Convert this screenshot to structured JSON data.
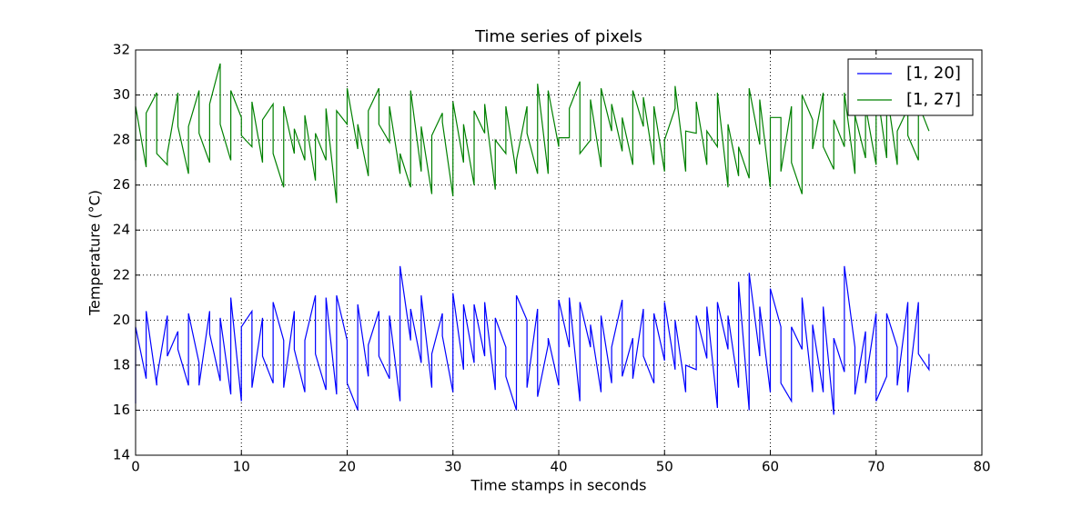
{
  "chart_data": {
    "type": "line",
    "title": "Time series of pixels",
    "x_label": "Time stamps in seconds",
    "y_label": "Temperature (°C)",
    "x": [
      0,
      0,
      1,
      1,
      2,
      2,
      3,
      3,
      4,
      4,
      5,
      5,
      6,
      6,
      7,
      7,
      8,
      8,
      9,
      9,
      10,
      10,
      11,
      11,
      12,
      12,
      13,
      13,
      14,
      14,
      15,
      15,
      16,
      16,
      17,
      17,
      18,
      18,
      19,
      19,
      20,
      20,
      21,
      21,
      22,
      22,
      23,
      23,
      24,
      24,
      25,
      25,
      26,
      26,
      27,
      27,
      28,
      28,
      29,
      29,
      30,
      30,
      31,
      31,
      32,
      32,
      33,
      33,
      34,
      34,
      35,
      35,
      36,
      36,
      37,
      37,
      38,
      38,
      39,
      39,
      40,
      40,
      41,
      41,
      42,
      42,
      43,
      43,
      44,
      44,
      45,
      45,
      46,
      46,
      47,
      47,
      48,
      48,
      49,
      49,
      50,
      50,
      51,
      51,
      52,
      52,
      53,
      53,
      54,
      54,
      55,
      55,
      56,
      56,
      57,
      57,
      58,
      58,
      59,
      59,
      60,
      60,
      61,
      61,
      62,
      62,
      63,
      63,
      64,
      64,
      65,
      65,
      66,
      66,
      67,
      67,
      68,
      68,
      69,
      69,
      70,
      70,
      71,
      71,
      72,
      72,
      73,
      73,
      74,
      74,
      75,
      75
    ],
    "series": [
      {
        "name": "[1, 20]",
        "color": "#0000ff",
        "values": [
          16.3,
          19.7,
          17.4,
          20.4,
          17.1,
          17.4,
          20.2,
          18.4,
          19.5,
          18.7,
          17.1,
          20.3,
          18.1,
          17.1,
          20.4,
          19.4,
          17.3,
          20.1,
          16.7,
          21.0,
          16.4,
          19.7,
          20.4,
          17.0,
          20.1,
          18.4,
          17.2,
          20.8,
          19.1,
          17.0,
          20.4,
          18.7,
          16.8,
          19.1,
          21.1,
          18.5,
          16.9,
          21.0,
          16.7,
          21.1,
          19.1,
          17.2,
          16.0,
          20.7,
          17.5,
          18.9,
          20.4,
          18.4,
          17.4,
          20.2,
          16.4,
          22.4,
          19.1,
          20.5,
          18.1,
          21.1,
          17.0,
          18.5,
          20.3,
          19.3,
          16.8,
          21.2,
          17.8,
          20.7,
          18.1,
          20.7,
          18.4,
          20.8,
          16.9,
          20.1,
          18.8,
          17.5,
          16.0,
          21.1,
          20.0,
          17.0,
          20.5,
          16.6,
          18.9,
          19.2,
          17.1,
          20.9,
          18.8,
          21.0,
          16.4,
          20.8,
          18.8,
          19.8,
          16.8,
          20.2,
          17.2,
          18.8,
          20.9,
          17.5,
          19.2,
          17.4,
          20.5,
          18.4,
          17.2,
          20.3,
          18.2,
          20.8,
          17.8,
          20.0,
          16.8,
          18.0,
          17.8,
          20.2,
          18.3,
          20.6,
          16.1,
          20.8,
          18.7,
          20.2,
          17.0,
          21.7,
          16.0,
          22.1,
          18.4,
          20.6,
          16.8,
          21.4,
          19.7,
          17.2,
          16.4,
          19.7,
          18.7,
          21.0,
          16.8,
          19.8,
          16.8,
          20.6,
          15.8,
          19.2,
          17.7,
          22.4,
          18.8,
          16.7,
          19.5,
          17.2,
          20.3,
          16.4,
          17.5,
          20.3,
          18.8,
          17.1,
          20.8,
          16.8,
          20.8,
          18.5,
          17.8,
          18.5
        ]
      },
      {
        "name": "[1, 27]",
        "color": "#008000",
        "values": [
          27.1,
          29.5,
          26.8,
          29.2,
          30.1,
          27.4,
          26.9,
          27.4,
          30.1,
          28.6,
          26.5,
          28.6,
          30.2,
          28.3,
          27.0,
          29.6,
          31.4,
          28.7,
          27.1,
          30.2,
          29.0,
          28.2,
          27.7,
          29.7,
          27.0,
          28.9,
          29.6,
          27.4,
          25.9,
          29.5,
          27.4,
          28.5,
          27.1,
          29.1,
          26.2,
          28.3,
          27.1,
          29.4,
          25.2,
          29.3,
          28.7,
          30.3,
          27.6,
          28.7,
          26.4,
          29.3,
          30.3,
          28.7,
          27.9,
          29.5,
          26.5,
          27.4,
          25.9,
          30.2,
          26.6,
          28.6,
          25.6,
          28.2,
          29.2,
          28.8,
          25.5,
          29.7,
          27.0,
          28.7,
          26.0,
          29.3,
          28.3,
          29.6,
          25.8,
          28.0,
          27.4,
          29.5,
          26.5,
          27.1,
          29.5,
          28.3,
          26.5,
          30.5,
          26.5,
          30.2,
          27.7,
          28.1,
          28.1,
          29.4,
          30.6,
          27.4,
          28.0,
          29.8,
          26.8,
          30.3,
          28.4,
          29.6,
          27.5,
          29.0,
          26.9,
          30.2,
          28.6,
          29.9,
          26.9,
          29.5,
          26.6,
          28.0,
          29.4,
          30.4,
          26.6,
          28.4,
          28.3,
          29.7,
          26.9,
          28.4,
          27.7,
          30.1,
          25.9,
          28.7,
          26.4,
          27.7,
          26.3,
          30.3,
          27.8,
          29.8,
          25.9,
          29.0,
          29.0,
          26.6,
          29.5,
          27.0,
          25.6,
          30.0,
          28.9,
          27.6,
          30.1,
          27.7,
          26.7,
          28.9,
          27.7,
          30.1,
          26.5,
          29.1,
          27.2,
          29.5,
          26.9,
          30.5,
          27.2,
          30.2,
          26.9,
          28.4,
          29.4,
          28.2,
          27.1,
          29.6,
          28.4,
          28.4
        ]
      }
    ],
    "xlim": [
      0,
      80
    ],
    "xticks": [
      0,
      10,
      20,
      30,
      40,
      50,
      60,
      70,
      80
    ],
    "ylim": [
      14,
      32
    ],
    "yticks": [
      14,
      16,
      18,
      20,
      22,
      24,
      26,
      28,
      30,
      32
    ],
    "grid": true,
    "legend": "upper right"
  }
}
